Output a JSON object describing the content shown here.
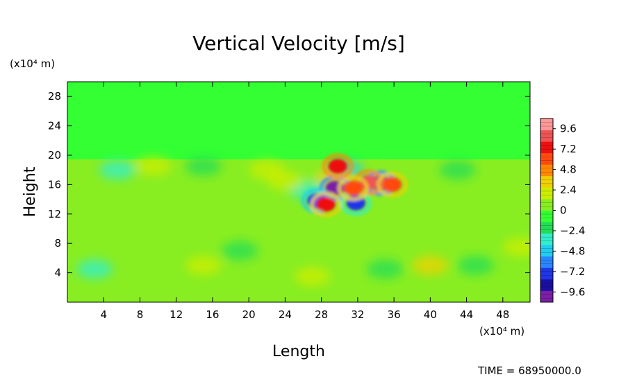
{
  "chart_data": {
    "type": "heatmap",
    "title": "Vertical Velocity [m/s]",
    "xlabel": "Length",
    "ylabel": "Height",
    "x_unit": "(x10⁴ m)",
    "y_unit": "(x10⁴ m)",
    "xlim": [
      0,
      51
    ],
    "ylim": [
      0,
      30
    ],
    "x_ticks": [
      4,
      8,
      12,
      16,
      20,
      24,
      28,
      32,
      36,
      40,
      44,
      48
    ],
    "y_ticks": [
      4,
      8,
      12,
      16,
      20,
      24,
      28
    ],
    "colorbar": {
      "range": [
        -10.8,
        10.8
      ],
      "tick_labels": [
        "9.6",
        "7.2",
        "4.8",
        "2.4",
        "0",
        "−2.4",
        "−4.8",
        "−7.2",
        "−9.6"
      ],
      "tick_values": [
        9.6,
        7.2,
        4.8,
        2.4,
        0,
        -2.4,
        -4.8,
        -7.2,
        -9.6
      ]
    },
    "background_value": 0.3,
    "features": [
      {
        "x": 29.5,
        "y": 15.5,
        "w": -10.5
      },
      {
        "x": 34.5,
        "y": 16.2,
        "w": -10.0
      },
      {
        "x": 27.5,
        "y": 13.8,
        "w": -7.5
      },
      {
        "x": 31.8,
        "y": 13.5,
        "w": -7.0
      },
      {
        "x": 30.6,
        "y": 18.0,
        "w": -4.5
      },
      {
        "x": 33.2,
        "y": 16.3,
        "w": 9.0
      },
      {
        "x": 29.8,
        "y": 18.5,
        "w": 7.5
      },
      {
        "x": 28.5,
        "y": 13.3,
        "w": 7.0
      },
      {
        "x": 31.5,
        "y": 15.5,
        "w": 6.0
      },
      {
        "x": 35.8,
        "y": 16.0,
        "w": 5.5
      },
      {
        "x": 29.2,
        "y": 16.8,
        "w": 3.5
      },
      {
        "x": 26.5,
        "y": 15.2,
        "w": -3.5
      },
      {
        "x": 5.5,
        "y": 18.0,
        "w": -4.0
      },
      {
        "x": 9.5,
        "y": 18.5,
        "w": 2.5
      },
      {
        "x": 15.0,
        "y": 18.5,
        "w": -2.5
      },
      {
        "x": 22.0,
        "y": 18.0,
        "w": 2.0
      },
      {
        "x": 24.0,
        "y": 16.5,
        "w": 2.5
      },
      {
        "x": 43.0,
        "y": 18.0,
        "w": -2.5
      },
      {
        "x": 19.0,
        "y": 7.0,
        "w": -2.0
      },
      {
        "x": 3.0,
        "y": 4.5,
        "w": -2.8
      },
      {
        "x": 15.0,
        "y": 5.0,
        "w": 2.5
      },
      {
        "x": 27.0,
        "y": 3.5,
        "w": 2.0
      },
      {
        "x": 35.0,
        "y": 4.5,
        "w": -2.5
      },
      {
        "x": 40.0,
        "y": 5.0,
        "w": 2.8
      },
      {
        "x": 45.0,
        "y": 5.0,
        "w": -2.0
      },
      {
        "x": 50.0,
        "y": 7.5,
        "w": 2.0
      }
    ]
  },
  "footer": {
    "time_label": "TIME = 68950000.0"
  }
}
